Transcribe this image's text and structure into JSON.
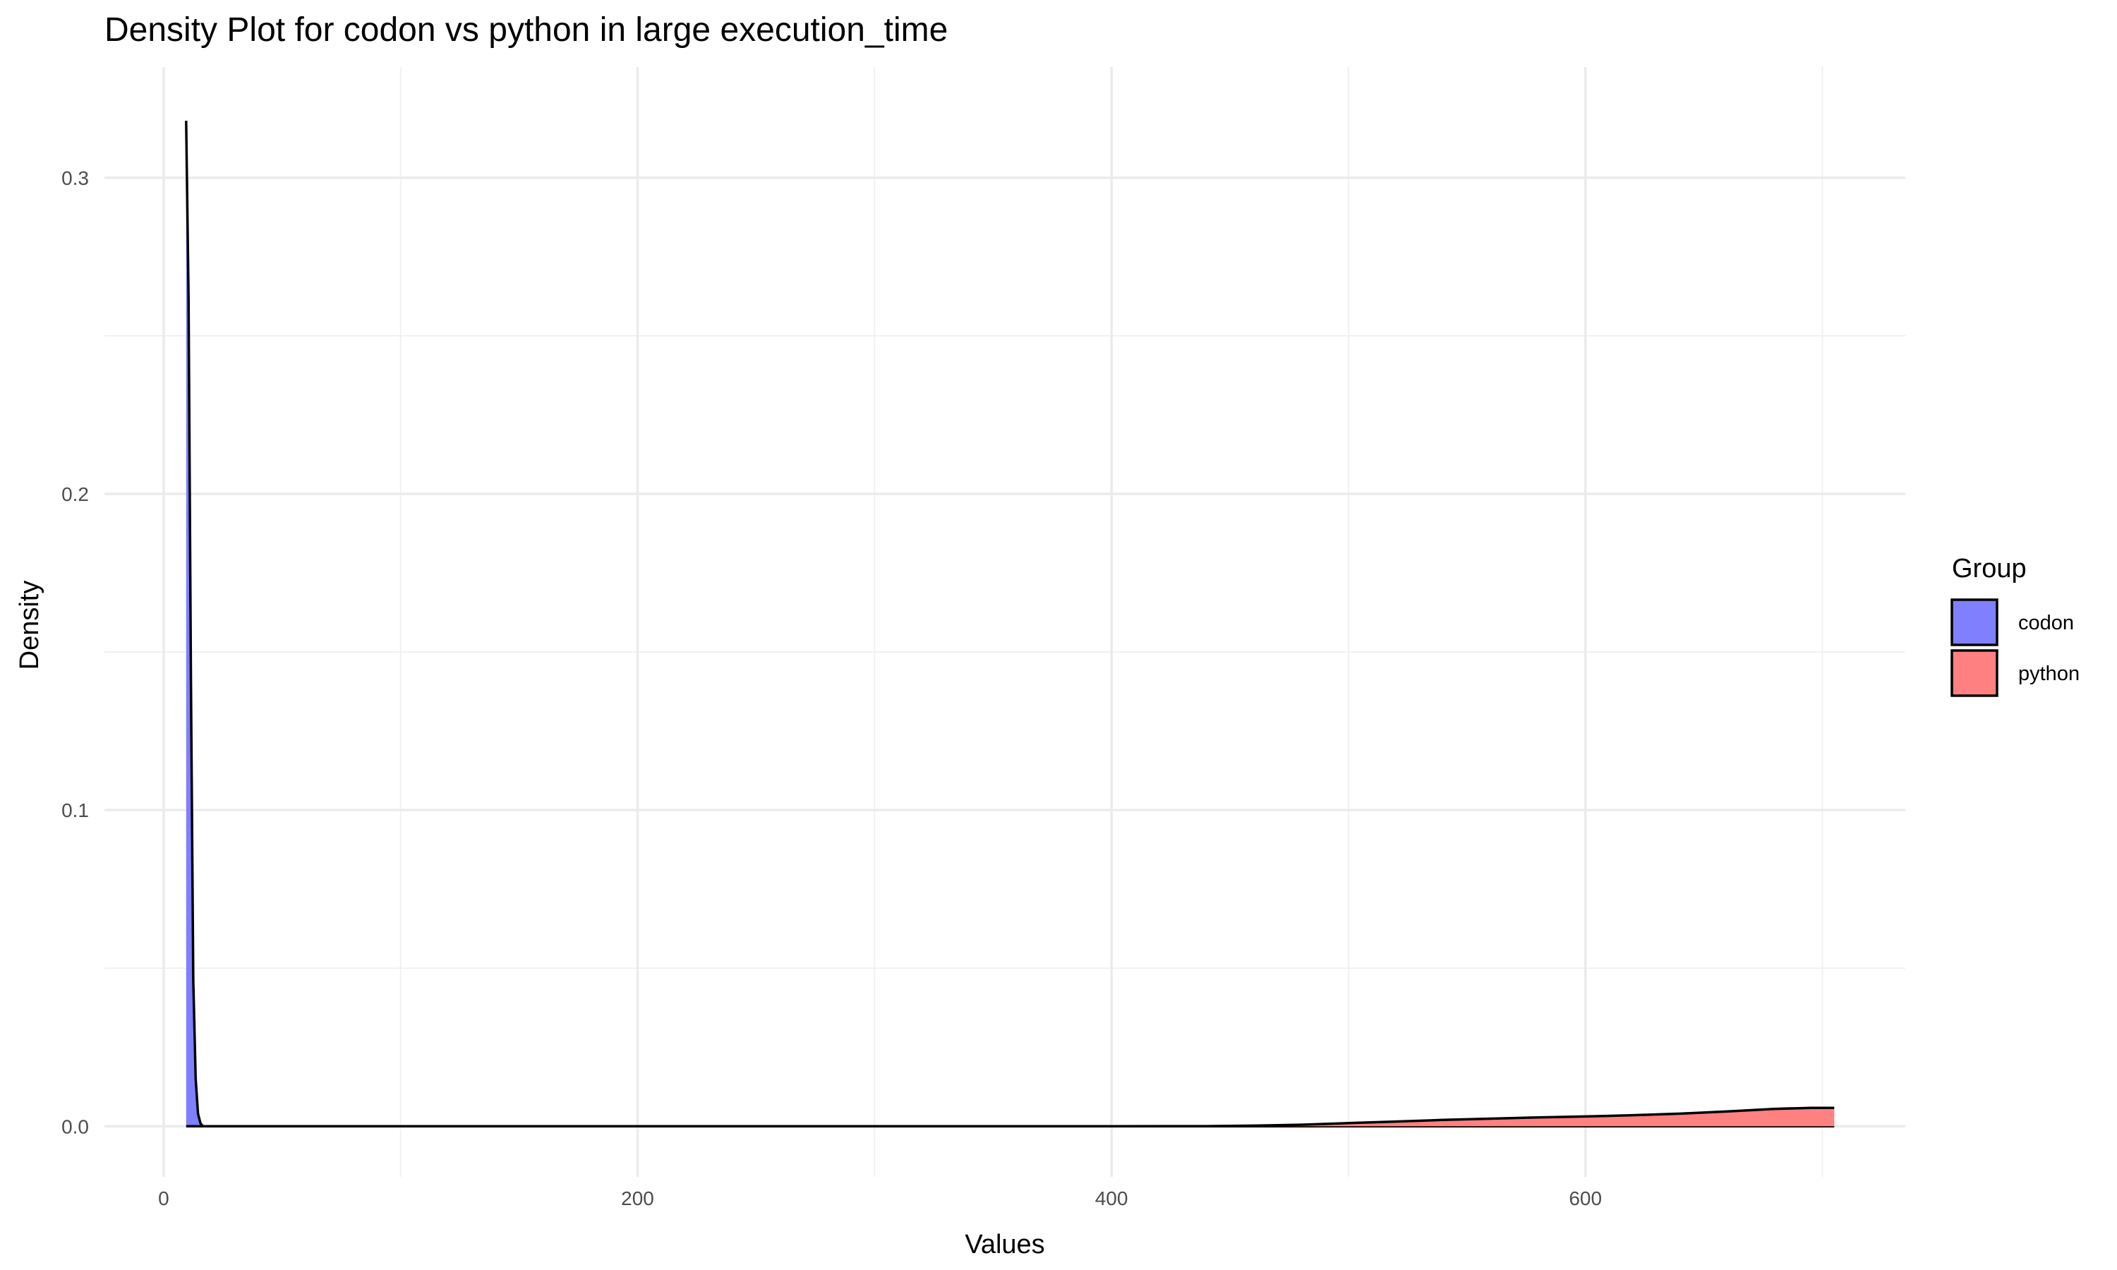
{
  "chart_data": {
    "type": "area",
    "title": "Density Plot for codon vs python in large execution_time",
    "xlabel": "Values",
    "ylabel": "Density",
    "xlim": [
      -25,
      735
    ],
    "ylim": [
      -0.016,
      0.335
    ],
    "x_ticks": [
      0,
      200,
      400,
      600
    ],
    "x_tick_labels": [
      "0",
      "200",
      "400",
      "600"
    ],
    "x_minor_ticks": [
      100,
      300,
      500,
      700
    ],
    "y_ticks": [
      0.0,
      0.1,
      0.2,
      0.3
    ],
    "y_tick_labels": [
      "0.0",
      "0.1",
      "0.2",
      "0.3"
    ],
    "y_minor_ticks": [
      0.05,
      0.15,
      0.25
    ],
    "grid": true,
    "legend": {
      "title": "Group",
      "position": "right",
      "entries": [
        "codon",
        "python"
      ]
    },
    "series": [
      {
        "name": "codon",
        "color": "#8080ff",
        "x": [
          9.5,
          10.5,
          11.5,
          12.5,
          13.5,
          14.5,
          15.5,
          16.5,
          500,
          550,
          600,
          650,
          705
        ],
        "values": [
          0.318,
          0.262,
          0.14,
          0.046,
          0.015,
          0.004,
          0.001,
          0.0,
          0.0,
          0.0,
          0.0,
          0.0,
          0.0
        ]
      },
      {
        "name": "python",
        "color": "#ff8080",
        "x": [
          9.5,
          300,
          400,
          440,
          460,
          480,
          500,
          520,
          540,
          560,
          580,
          600,
          620,
          640,
          660,
          680,
          695,
          705
        ],
        "values": [
          0.0,
          0.0,
          0.0,
          5e-05,
          0.0002,
          0.0005,
          0.001,
          0.0015,
          0.002,
          0.0024,
          0.0028,
          0.0031,
          0.0035,
          0.004,
          0.0047,
          0.0055,
          0.0058,
          0.0058
        ]
      }
    ]
  }
}
